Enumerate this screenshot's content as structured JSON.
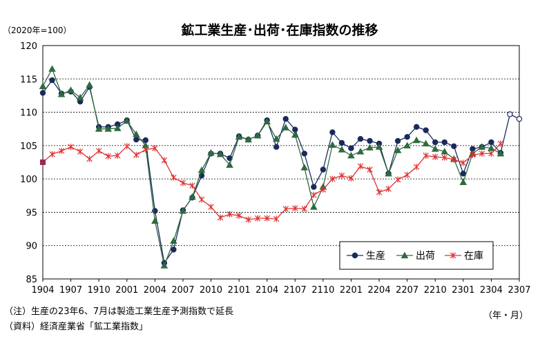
{
  "chart_data": {
    "type": "line",
    "title": "鉱工業生産･出荷･在庫指数の推移",
    "unit_label": "（2020年=100）",
    "x_unit_label": "（年・月）",
    "ylim": [
      85,
      120
    ],
    "yticks": [
      85,
      90,
      95,
      100,
      105,
      110,
      115,
      120
    ],
    "grid": true,
    "legend_position": "bottom-right",
    "categories": [
      "1904",
      "1905",
      "1906",
      "1907",
      "1908",
      "1909",
      "1910",
      "1911",
      "1912",
      "2001",
      "2002",
      "2003",
      "2004",
      "2005",
      "2006",
      "2007",
      "2008",
      "2009",
      "2010",
      "2011",
      "2012",
      "2101",
      "2102",
      "2103",
      "2104",
      "2105",
      "2106",
      "2107",
      "2108",
      "2109",
      "2110",
      "2111",
      "2112",
      "2201",
      "2202",
      "2203",
      "2204",
      "2205",
      "2206",
      "2207",
      "2208",
      "2209",
      "2210",
      "2211",
      "2212",
      "2301",
      "2302",
      "2303",
      "2304",
      "2305",
      "2306",
      "2307"
    ],
    "tick_labels": [
      "1904",
      "1907",
      "1910",
      "2001",
      "2004",
      "2007",
      "2010",
      "2101",
      "2104",
      "2107",
      "2110",
      "2201",
      "2204",
      "2207",
      "2210",
      "2301",
      "2304",
      "2307"
    ],
    "series": [
      {
        "name": "生産",
        "color": "#1a2a5c",
        "marker": "circle",
        "values": [
          112.9,
          114.8,
          112.8,
          113.1,
          111.6,
          113.8,
          107.8,
          107.8,
          108.2,
          108.8,
          105.9,
          105.8,
          95.2,
          87.4,
          89.4,
          95.3,
          97.2,
          100.5,
          103.8,
          103.8,
          103.1,
          106.4,
          105.9,
          106.5,
          108.8,
          104.8,
          109.0,
          107.4,
          103.8,
          98.8,
          101.4,
          107.0,
          105.4,
          104.6,
          106.0,
          105.7,
          105.3,
          100.8,
          105.7,
          106.3,
          107.8,
          107.3,
          105.5,
          105.5,
          104.9,
          100.8,
          104.5,
          104.8,
          105.5,
          103.9,
          109.7,
          109.0
        ],
        "forecast_from_index": 50
      },
      {
        "name": "出荷",
        "color": "#2e6b3e",
        "marker": "triangle",
        "values": [
          113.9,
          116.5,
          112.7,
          113.3,
          112.2,
          114.1,
          107.5,
          107.5,
          107.6,
          108.7,
          106.7,
          105.0,
          93.7,
          87.0,
          90.7,
          95.2,
          97.3,
          101.3,
          103.9,
          103.7,
          102.1,
          106.3,
          105.9,
          106.5,
          108.6,
          106.0,
          107.7,
          106.6,
          101.7,
          95.8,
          98.8,
          105.1,
          104.4,
          103.5,
          104.1,
          104.7,
          104.8,
          100.8,
          104.3,
          105.0,
          105.8,
          105.3,
          104.5,
          104.1,
          103.0,
          99.5,
          103.8,
          104.8,
          104.6,
          103.8,
          null,
          null
        ]
      },
      {
        "name": "在庫",
        "color": "#e03030",
        "marker": "x",
        "values": [
          102.5,
          103.7,
          104.2,
          104.8,
          104.1,
          103.0,
          104.2,
          103.4,
          103.5,
          104.9,
          103.6,
          104.4,
          104.6,
          102.8,
          100.2,
          99.4,
          99.0,
          96.9,
          95.8,
          94.2,
          94.7,
          94.5,
          93.9,
          94.1,
          94.1,
          94.0,
          95.5,
          95.6,
          95.5,
          97.6,
          98.4,
          100.0,
          100.5,
          100.1,
          101.9,
          101.4,
          98.0,
          98.5,
          99.9,
          100.6,
          101.8,
          103.5,
          103.3,
          103.2,
          102.9,
          102.4,
          103.6,
          103.8,
          103.8,
          105.3,
          null,
          null
        ]
      }
    ]
  },
  "notes": {
    "line1": "（注）生産の23年6、7月は製造工業生産予測指数で延長",
    "line2": "（資料）経済産業省「鉱工業指数」"
  }
}
